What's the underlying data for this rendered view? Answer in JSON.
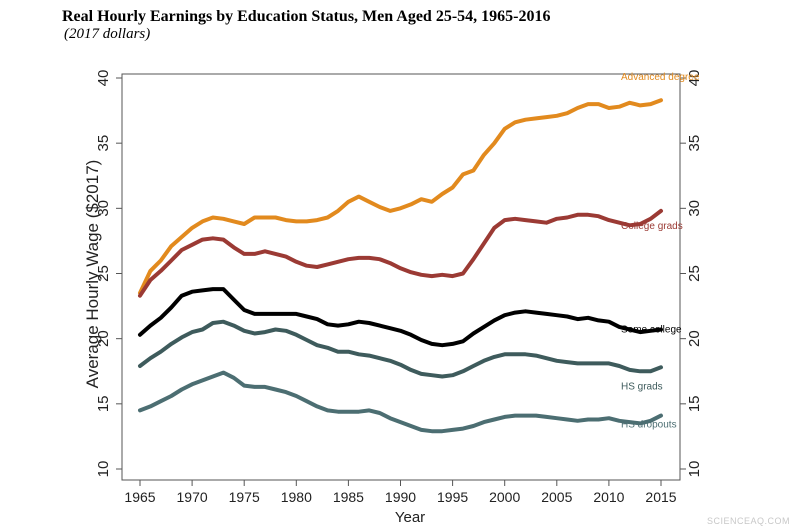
{
  "chart_data": {
    "type": "line",
    "title": "Real Hourly Earnings by Education Status, Men Aged 25-54, 1965-2016",
    "subtitle": "(2017 dollars)",
    "xlabel": "Year",
    "ylabel": "Average Hourly Wage ($2017)",
    "xlim": [
      1965,
      2015
    ],
    "ylim": [
      10,
      40
    ],
    "xticks": [
      1965,
      1970,
      1975,
      1980,
      1985,
      1990,
      1995,
      2000,
      2005,
      2010,
      2015
    ],
    "yticks": [
      10,
      15,
      20,
      25,
      30,
      35,
      40
    ],
    "grid": false,
    "legend": "direct labels at right end of lines",
    "x": [
      1965,
      1966,
      1967,
      1968,
      1969,
      1970,
      1971,
      1972,
      1973,
      1974,
      1975,
      1976,
      1977,
      1978,
      1979,
      1980,
      1981,
      1982,
      1983,
      1984,
      1985,
      1986,
      1987,
      1988,
      1989,
      1990,
      1991,
      1992,
      1993,
      1994,
      1995,
      1996,
      1997,
      1998,
      1999,
      2000,
      2001,
      2002,
      2003,
      2004,
      2005,
      2006,
      2007,
      2008,
      2009,
      2010,
      2011,
      2012,
      2013,
      2014,
      2015
    ],
    "series": [
      {
        "name": "Advanced degree",
        "color": "#E28A1E",
        "values": [
          23.5,
          25.2,
          26.0,
          27.1,
          27.8,
          28.5,
          29.0,
          29.3,
          29.2,
          29.0,
          28.8,
          29.3,
          29.3,
          29.3,
          29.1,
          29.0,
          29.0,
          29.1,
          29.3,
          29.8,
          30.5,
          30.9,
          30.5,
          30.1,
          29.8,
          30.0,
          30.3,
          30.7,
          30.5,
          31.1,
          31.6,
          32.6,
          32.9,
          34.1,
          35.0,
          36.1,
          36.6,
          36.8,
          36.9,
          37.0,
          37.1,
          37.3,
          37.7,
          38.0,
          38.0,
          37.7,
          37.8,
          38.1,
          37.9,
          38.0,
          38.3
        ]
      },
      {
        "name": "College grads",
        "color": "#9B3A34",
        "values": [
          23.3,
          24.5,
          25.2,
          26.0,
          26.8,
          27.2,
          27.6,
          27.7,
          27.6,
          27.0,
          26.5,
          26.5,
          26.7,
          26.5,
          26.3,
          25.9,
          25.6,
          25.5,
          25.7,
          25.9,
          26.1,
          26.2,
          26.2,
          26.1,
          25.8,
          25.4,
          25.1,
          24.9,
          24.8,
          24.9,
          24.8,
          25.0,
          26.1,
          27.3,
          28.5,
          29.1,
          29.2,
          29.1,
          29.0,
          28.9,
          29.2,
          29.3,
          29.5,
          29.5,
          29.4,
          29.1,
          28.9,
          28.7,
          28.8,
          29.2,
          29.8
        ]
      },
      {
        "name": "Some college",
        "color": "#000000",
        "values": [
          20.3,
          21.0,
          21.6,
          22.4,
          23.3,
          23.6,
          23.7,
          23.8,
          23.8,
          23.0,
          22.2,
          21.9,
          21.9,
          21.9,
          21.9,
          21.9,
          21.7,
          21.5,
          21.1,
          21.0,
          21.1,
          21.3,
          21.2,
          21.0,
          20.8,
          20.6,
          20.3,
          19.9,
          19.6,
          19.5,
          19.6,
          19.8,
          20.4,
          20.9,
          21.4,
          21.8,
          22.0,
          22.1,
          22.0,
          21.9,
          21.8,
          21.7,
          21.5,
          21.6,
          21.4,
          21.3,
          20.9,
          20.7,
          20.5,
          20.6,
          20.7
        ]
      },
      {
        "name": "HS grads",
        "color": "#3E5B5C",
        "values": [
          17.9,
          18.5,
          19.0,
          19.6,
          20.1,
          20.5,
          20.7,
          21.2,
          21.3,
          21.0,
          20.6,
          20.4,
          20.5,
          20.7,
          20.6,
          20.3,
          19.9,
          19.5,
          19.3,
          19.0,
          19.0,
          18.8,
          18.7,
          18.5,
          18.3,
          18.0,
          17.6,
          17.3,
          17.2,
          17.1,
          17.2,
          17.5,
          17.9,
          18.3,
          18.6,
          18.8,
          18.8,
          18.8,
          18.7,
          18.5,
          18.3,
          18.2,
          18.1,
          18.1,
          18.1,
          18.1,
          17.9,
          17.6,
          17.5,
          17.5,
          17.8
        ]
      },
      {
        "name": "HS dropouts",
        "color": "#4C6E72",
        "values": [
          14.5,
          14.8,
          15.2,
          15.6,
          16.1,
          16.5,
          16.8,
          17.1,
          17.4,
          17.0,
          16.4,
          16.3,
          16.3,
          16.1,
          15.9,
          15.6,
          15.2,
          14.8,
          14.5,
          14.4,
          14.4,
          14.4,
          14.5,
          14.3,
          13.9,
          13.6,
          13.3,
          13.0,
          12.9,
          12.9,
          13.0,
          13.1,
          13.3,
          13.6,
          13.8,
          14.0,
          14.1,
          14.1,
          14.1,
          14.0,
          13.9,
          13.8,
          13.7,
          13.8,
          13.8,
          13.9,
          13.7,
          13.6,
          13.5,
          13.7,
          14.1
        ]
      }
    ]
  },
  "watermark": "SCIENCEAQ.COM"
}
